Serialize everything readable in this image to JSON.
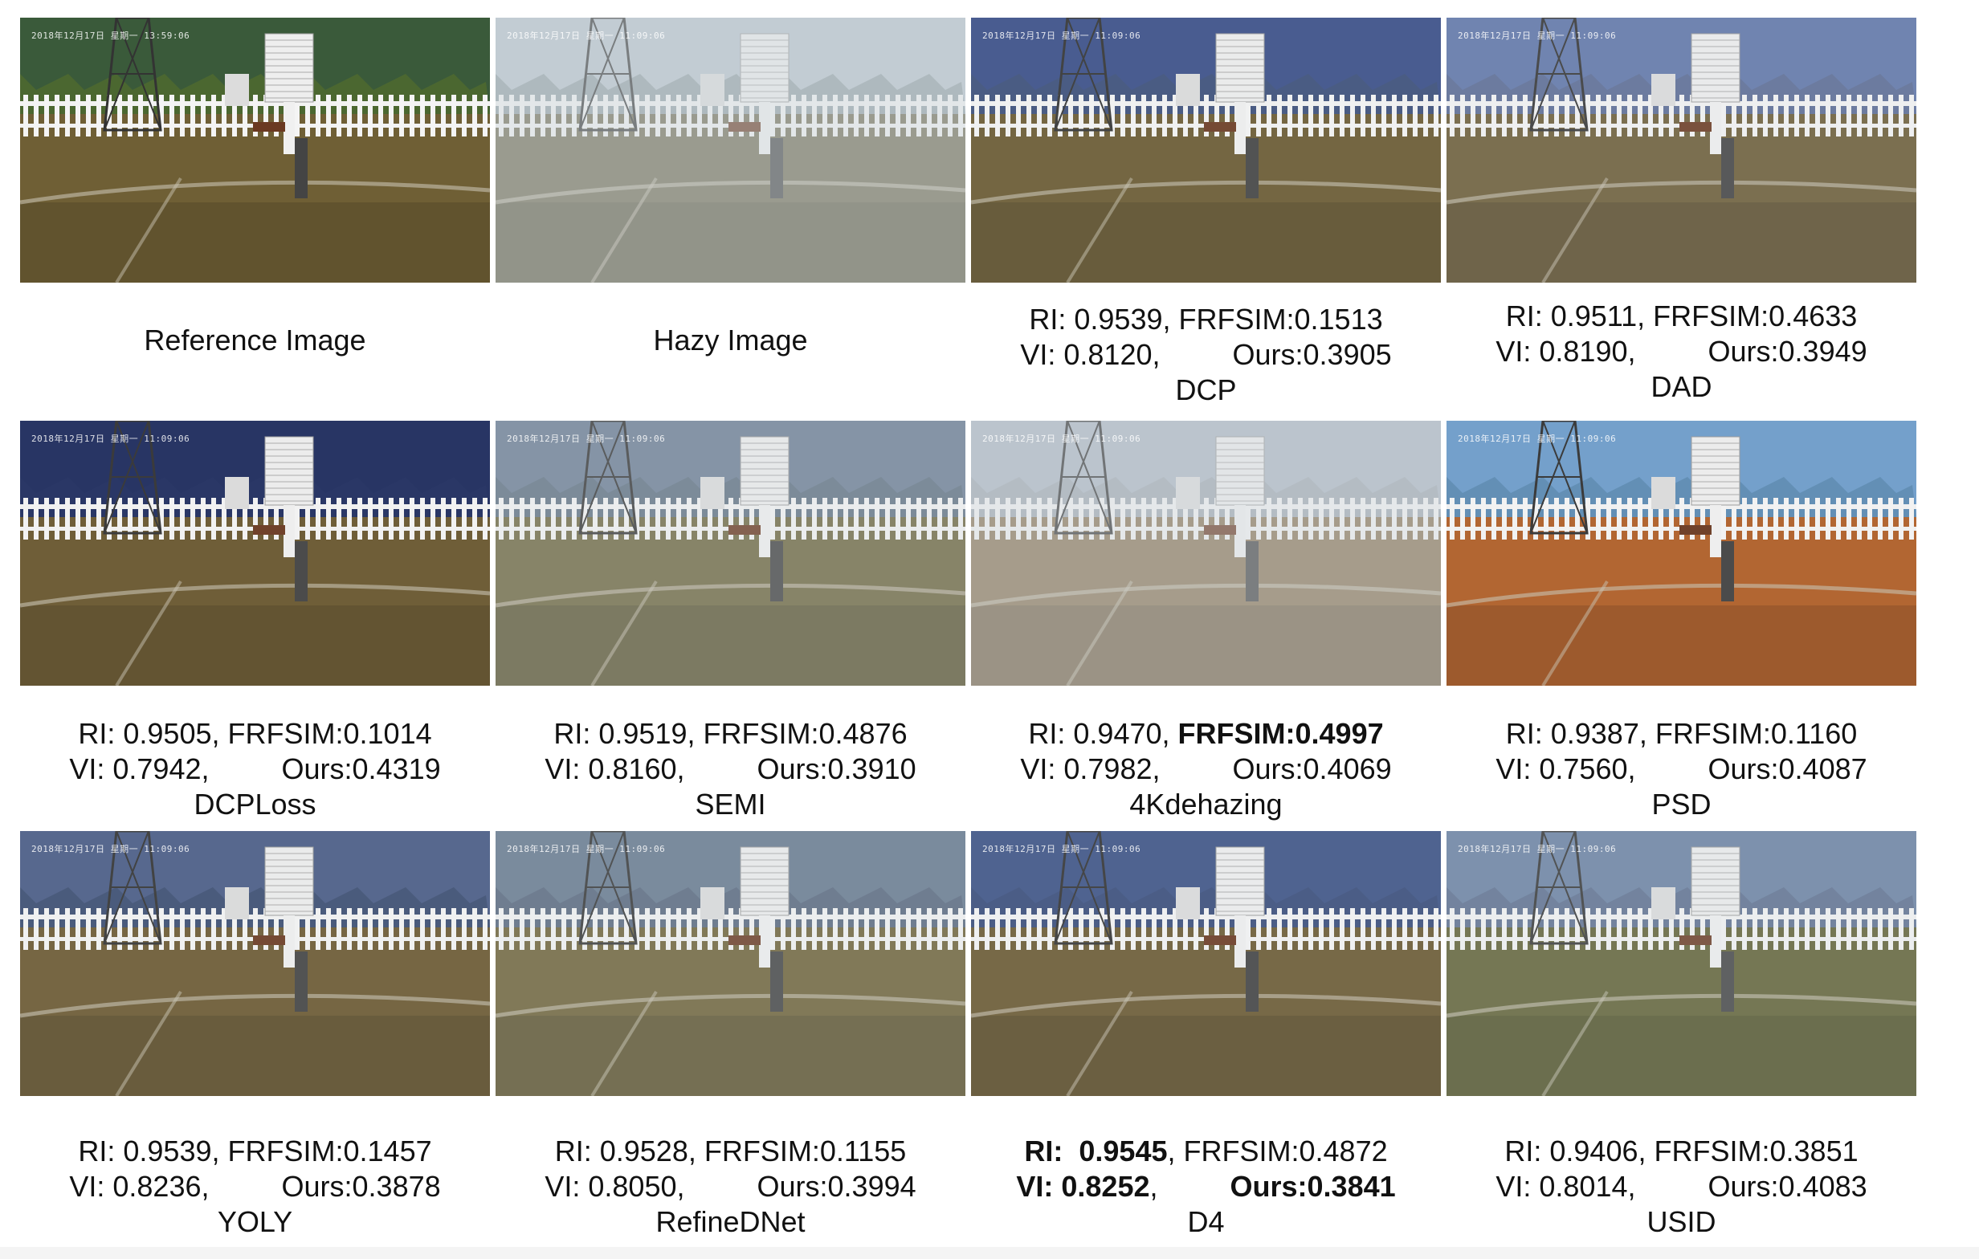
{
  "timestamps": {
    "reference": "2018年12月17日  星期一  13:59:06",
    "other": "2018年12月17日  星期一  11:09:06"
  },
  "panels": [
    {
      "key": "ref",
      "title": "Reference Image",
      "tint": "#4f6a2f",
      "sky": "#3a5a3a",
      "ground": "#6f5f35",
      "haze": 0.0
    },
    {
      "key": "hazy",
      "title": "Hazy Image",
      "tint": "#8d9aa0",
      "sky": "#b8c4cc",
      "ground": "#706a50",
      "haze": 0.45
    },
    {
      "key": "dcp",
      "title": "DCP",
      "ri": "0.9539",
      "frfsim": "0.1513",
      "vi": "0.8120",
      "ours": "0.3905",
      "tint": "#3d4d78",
      "sky": "#3a4f88",
      "ground": "#6a5a32",
      "haze": 0.1
    },
    {
      "key": "dad",
      "title": "DAD",
      "ri": "0.9511",
      "frfsim": "0.4633",
      "vi": "0.8190",
      "ours": "0.3949",
      "tint": "#5a6a92",
      "sky": "#6076a8",
      "ground": "#6d5d38",
      "haze": 0.15
    },
    {
      "key": "dcploss",
      "title": "DCPLoss",
      "ri": "0.9505",
      "frfsim": "0.1014",
      "vi": "0.7942",
      "ours": "0.4319",
      "tint": "#223060",
      "sky": "#1f2d5e",
      "ground": "#6a5830",
      "haze": 0.05
    },
    {
      "key": "semi",
      "title": "SEMI",
      "ri": "0.9519",
      "frfsim": "0.4876",
      "vi": "0.8160",
      "ours": "0.3910",
      "tint": "#5f7080",
      "sky": "#6c7e94",
      "ground": "#6f6842",
      "haze": 0.25
    },
    {
      "key": "4k",
      "title": "4Kdehazing",
      "ri": "0.9470",
      "frfsim": "0.4997",
      "vi": "0.7982",
      "ours": "0.4069",
      "tint": "#a0a8b0",
      "sky": "#aeb8c4",
      "ground": "#8a7656",
      "haze": 0.4
    },
    {
      "key": "psd",
      "title": "PSD",
      "ri": "0.9387",
      "frfsim": "0.1160",
      "vi": "0.7560",
      "ours": "0.4087",
      "tint": "#5a88b0",
      "sky": "#6f9ecb",
      "ground": "#b0602a",
      "haze": 0.05
    },
    {
      "key": "yoly",
      "title": "YOLY",
      "ri": "0.9539",
      "frfsim": "0.1457",
      "vi": "0.8236",
      "ours": "0.3878",
      "tint": "#3a4a6e",
      "sky": "#4a5c86",
      "ground": "#6c5a33",
      "haze": 0.1
    },
    {
      "key": "refinednet",
      "title": "RefineDNet",
      "ri": "0.9528",
      "frfsim": "0.1155",
      "vi": "0.8050",
      "ours": "0.3994",
      "tint": "#56647a",
      "sky": "#66788e",
      "ground": "#6e6238",
      "haze": 0.2
    },
    {
      "key": "d4",
      "title": "D4",
      "ri": "0.9545",
      "frfsim": "0.4872",
      "vi": "0.8252",
      "ours": "0.3841",
      "tint": "#3a4c78",
      "sky": "#3e5486",
      "ground": "#6c5a33",
      "haze": 0.12
    },
    {
      "key": "usid",
      "title": "USID",
      "ri": "0.9406",
      "frfsim": "0.3851",
      "vi": "0.8014",
      "ours": "0.4083",
      "tint": "#5a6c8c",
      "sky": "#6a80a2",
      "ground": "#5f6032",
      "haze": 0.2
    }
  ]
}
